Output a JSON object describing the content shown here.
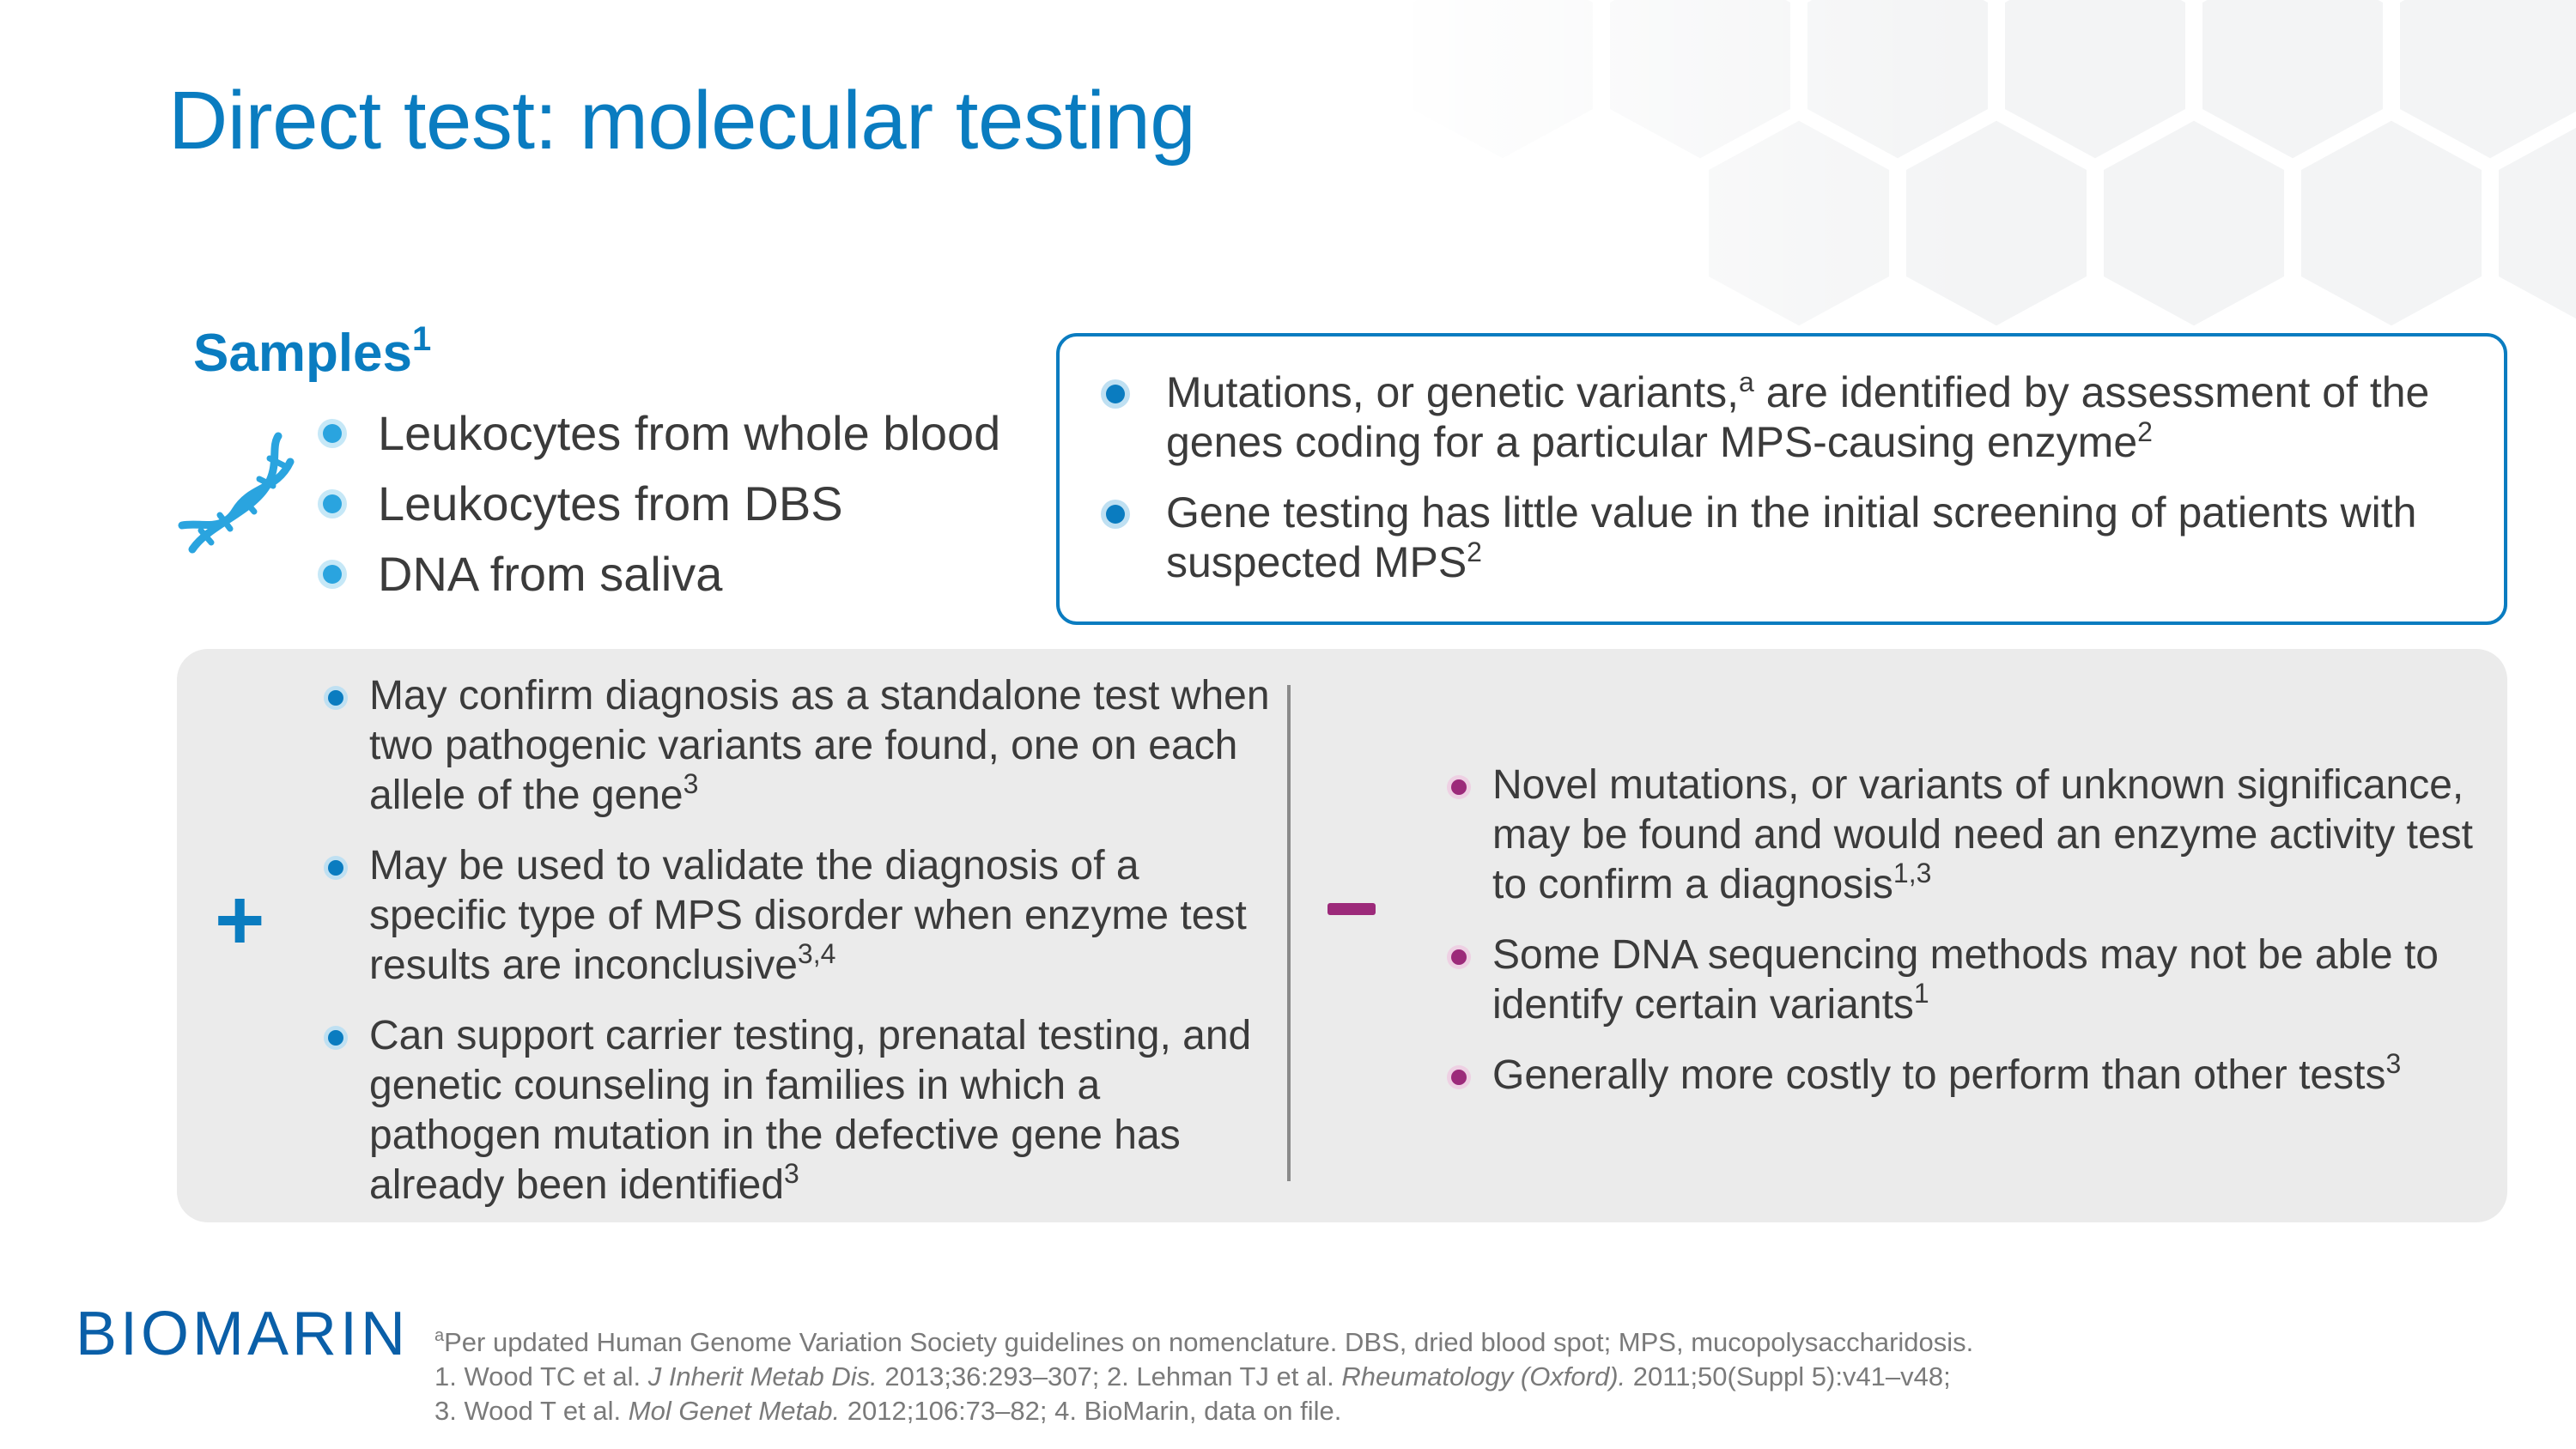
{
  "slide": {
    "title": "Direct test: molecular testing"
  },
  "samples": {
    "heading": "Samples",
    "heading_ref": "1",
    "icon": "dna-helix-icon",
    "items": [
      "Leukocytes from whole blood",
      "Leukocytes from DBS",
      "DNA from saliva"
    ]
  },
  "info_box": {
    "items": [
      {
        "text_a": "Mutations, or genetic variants,",
        "sup_a": "a",
        "text_b": " are identified by assessment of the genes coding for a particular MPS-causing enzyme",
        "sup_b": "2"
      },
      {
        "text_a": "Gene testing has little value in the initial screening of patients with suspected MPS",
        "sup_a": "2"
      }
    ]
  },
  "pros": {
    "symbol": "+",
    "items": [
      {
        "text": "May confirm diagnosis as a standalone test when two pathogenic variants are found, one on each allele of the gene",
        "ref": "3"
      },
      {
        "text": "May be used to validate the diagnosis of a specific type of MPS disorder when enzyme test results are inconclusive",
        "ref": "3,4"
      },
      {
        "text": "Can support carrier testing, prenatal testing, and genetic counseling in families in which a pathogen mutation in the defective gene has already been identified",
        "ref": "3"
      }
    ]
  },
  "cons": {
    "symbol": "minus",
    "items": [
      {
        "text": "Novel mutations, or variants of unknown significance, may be found and would need an enzyme activity test to confirm a diagnosis",
        "ref": "1,3"
      },
      {
        "text": "Some DNA sequencing methods may not be able to identify certain variants",
        "ref": "1"
      },
      {
        "text": "Generally more costly to perform than other tests",
        "ref": "3"
      }
    ]
  },
  "logo": {
    "text": "BIOMARIN"
  },
  "footnotes": {
    "line1_sup": "a",
    "line1": "Per updated Human Genome Variation Society guidelines on nomenclature. DBS, dried blood spot; MPS, mucopolysaccharidosis.",
    "line2_a": "1. Wood TC et al. ",
    "line2_b": "J Inherit Metab Dis.",
    "line2_c": " 2013;36:293–307; 2. Lehman TJ et al. ",
    "line2_d": "Rheumatology (Oxford).",
    "line2_e": " 2011;50(Suppl 5):v41–v48;",
    "line3_a": "3. Wood T et al. ",
    "line3_b": "Mol Genet Metab.",
    "line3_c": " 2012;106:73–82; 4. BioMarin, data on file."
  },
  "colors": {
    "title_blue": "#0a7cc0",
    "magenta": "#9c2a7a",
    "panel_gray": "#ebebeb"
  }
}
